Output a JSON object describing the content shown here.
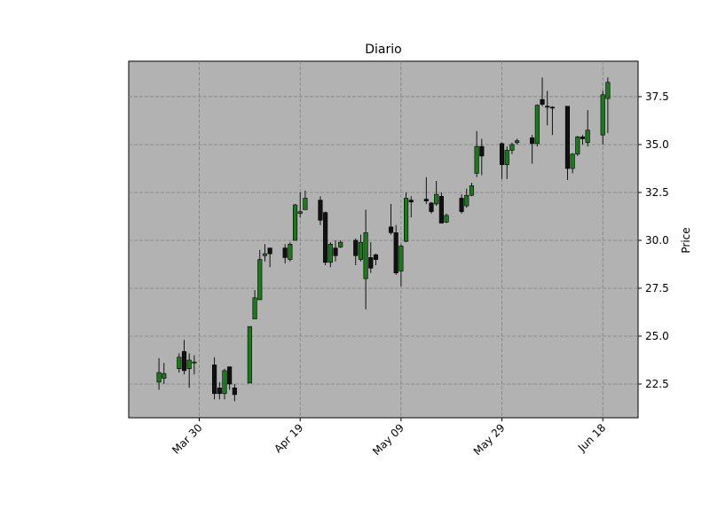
{
  "chart_data": {
    "type": "candlestick",
    "title": "Diario",
    "ylabel": "Price",
    "x": [
      "Mar 22",
      "Mar 23",
      "Mar 26",
      "Mar 27",
      "Mar 28",
      "Mar 29",
      "Apr 02",
      "Apr 03",
      "Apr 04",
      "Apr 05",
      "Apr 06",
      "Apr 09",
      "Apr 10",
      "Apr 11",
      "Apr 12",
      "Apr 13",
      "Apr 16",
      "Apr 17",
      "Apr 18",
      "Apr 19",
      "Apr 20",
      "Apr 23",
      "Apr 24",
      "Apr 25",
      "Apr 26",
      "Apr 27",
      "Apr 30",
      "May 01",
      "May 02",
      "May 03",
      "May 04",
      "May 07",
      "May 08",
      "May 09",
      "May 10",
      "May 11",
      "May 14",
      "May 15",
      "May 16",
      "May 17",
      "May 18",
      "May 21",
      "May 22",
      "May 23",
      "May 24",
      "May 25",
      "May 29",
      "May 30",
      "May 31",
      "Jun 01",
      "Jun 04",
      "Jun 05",
      "Jun 06",
      "Jun 07",
      "Jun 08",
      "Jun 11",
      "Jun 12",
      "Jun 13",
      "Jun 14",
      "Jun 15",
      "Jun 18",
      "Jun 19"
    ],
    "open": [
      22.6,
      22.8,
      23.3,
      24.2,
      23.3,
      23.6,
      23.5,
      22.3,
      22.0,
      23.4,
      22.3,
      22.55,
      25.9,
      26.9,
      29.2,
      29.6,
      29.6,
      29.0,
      30.0,
      31.4,
      31.6,
      32.1,
      31.45,
      28.85,
      29.6,
      29.65,
      30.0,
      29.0,
      28.0,
      29.1,
      29.25,
      30.7,
      30.4,
      28.4,
      29.95,
      32.1,
      32.15,
      31.95,
      31.9,
      32.3,
      30.95,
      32.2,
      31.8,
      32.35,
      33.5,
      34.9,
      35.05,
      33.95,
      34.7,
      35.1,
      35.35,
      35.05,
      37.35,
      37.0,
      36.95,
      37.0,
      33.75,
      34.5,
      35.4,
      35.1,
      35.5,
      37.4
    ],
    "high": [
      23.85,
      23.6,
      24.1,
      24.8,
      24.1,
      24.0,
      23.9,
      22.6,
      23.3,
      23.4,
      22.5,
      25.5,
      27.4,
      29.5,
      29.8,
      29.6,
      29.8,
      29.9,
      31.9,
      32.5,
      32.6,
      32.3,
      31.5,
      29.9,
      30.0,
      30.0,
      30.1,
      30.3,
      31.6,
      29.9,
      29.3,
      31.9,
      30.8,
      29.8,
      32.5,
      32.3,
      33.3,
      32.0,
      33.1,
      32.5,
      31.4,
      32.4,
      32.7,
      33.0,
      35.7,
      35.3,
      35.1,
      34.9,
      35.1,
      35.3,
      35.5,
      37.1,
      38.5,
      37.8,
      37.0,
      37.0,
      34.55,
      35.45,
      35.5,
      36.8,
      37.8,
      38.5
    ],
    "low": [
      22.2,
      22.5,
      23.1,
      23.0,
      22.3,
      23.0,
      21.7,
      21.7,
      21.7,
      22.2,
      21.6,
      22.55,
      25.9,
      26.9,
      28.9,
      28.6,
      28.8,
      28.9,
      30.0,
      31.2,
      31.6,
      30.8,
      28.7,
      28.6,
      28.9,
      29.6,
      28.7,
      28.9,
      26.4,
      28.3,
      28.7,
      30.3,
      28.2,
      27.6,
      29.9,
      31.2,
      31.9,
      31.4,
      31.8,
      30.9,
      30.9,
      31.4,
      31.7,
      32.3,
      33.3,
      33.4,
      33.2,
      33.2,
      34.5,
      35.0,
      34.0,
      34.9,
      37.0,
      36.0,
      35.5,
      33.15,
      33.5,
      34.4,
      35.0,
      34.9,
      35.0,
      35.6
    ],
    "close": [
      23.1,
      23.05,
      23.9,
      23.2,
      23.75,
      23.65,
      22.0,
      22.0,
      23.2,
      22.5,
      21.95,
      25.5,
      27.0,
      29.0,
      29.3,
      29.3,
      29.1,
      29.8,
      31.85,
      31.5,
      32.2,
      31.05,
      28.85,
      29.8,
      29.2,
      29.9,
      29.2,
      29.9,
      30.4,
      28.55,
      29.0,
      30.4,
      28.3,
      29.7,
      32.2,
      32.0,
      32.05,
      31.5,
      32.4,
      30.9,
      31.3,
      31.5,
      32.35,
      32.85,
      34.9,
      34.4,
      33.95,
      34.7,
      35.0,
      35.2,
      35.05,
      37.05,
      37.1,
      36.95,
      36.9,
      33.75,
      34.5,
      35.4,
      35.3,
      35.75,
      37.6,
      38.25
    ],
    "up_color": "#1a7a1a",
    "down_color": "#111111",
    "edge_color": "#000000",
    "xlim": [
      "Mar 16",
      "Jun 25"
    ],
    "xticks": [
      "Mar 30",
      "Apr 19",
      "May 09",
      "May 29",
      "Jun 18"
    ],
    "ylim": [
      20.74,
      39.35
    ],
    "yticks": [
      22.5,
      {
        "value": 25,
        "label": "25.0"
      },
      27.5,
      {
        "value": 30,
        "label": "30.0"
      },
      32.5,
      {
        "value": 35,
        "label": "35.0"
      },
      37.5
    ],
    "y_axis_side": "right",
    "grid": true,
    "background": "#b2b2b2"
  }
}
